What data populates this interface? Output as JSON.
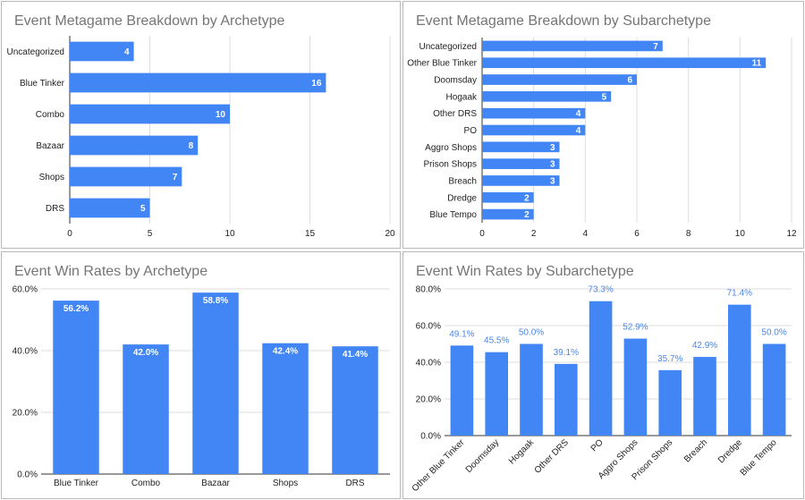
{
  "colors": {
    "bar": "#4285f4",
    "grid": "#dddddd",
    "axis": "#333333",
    "title": "#757575"
  },
  "chart_data": [
    {
      "type": "bar",
      "orientation": "horizontal",
      "title": "Event Metagame Breakdown by Archetype",
      "categories": [
        "Uncategorized",
        "Blue Tinker",
        "Combo",
        "Bazaar",
        "Shops",
        "DRS"
      ],
      "values": [
        4,
        16,
        10,
        8,
        7,
        5
      ],
      "value_labels": [
        "4",
        "16",
        "10",
        "8",
        "7",
        "5"
      ],
      "xlim": [
        0,
        20
      ],
      "ticks": [
        0,
        5,
        10,
        15,
        20
      ],
      "tick_labels": [
        "0",
        "5",
        "10",
        "15",
        "20"
      ],
      "grid": true
    },
    {
      "type": "bar",
      "orientation": "horizontal",
      "title": "Event Metagame Breakdown by Subarchetype",
      "categories": [
        "Uncategorized",
        "Other Blue Tinker",
        "Doomsday",
        "Hogaak",
        "Other DRS",
        "PO",
        "Aggro Shops",
        "Prison Shops",
        "Breach",
        "Dredge",
        "Blue Tempo"
      ],
      "values": [
        7,
        11,
        6,
        5,
        4,
        4,
        3,
        3,
        3,
        2,
        2
      ],
      "value_labels": [
        "7",
        "11",
        "6",
        "5",
        "4",
        "4",
        "3",
        "3",
        "3",
        "2",
        "2"
      ],
      "xlim": [
        0,
        12
      ],
      "ticks": [
        0,
        2,
        4,
        6,
        8,
        10,
        12
      ],
      "tick_labels": [
        "0",
        "2",
        "4",
        "6",
        "8",
        "10",
        "12"
      ],
      "grid": true
    },
    {
      "type": "bar",
      "orientation": "vertical",
      "title": "Event Win Rates by Archetype",
      "categories": [
        "Blue Tinker",
        "Combo",
        "Bazaar",
        "Shops",
        "DRS"
      ],
      "values": [
        56.2,
        42.0,
        58.8,
        42.4,
        41.4
      ],
      "value_labels": [
        "56.2%",
        "42.0%",
        "58.8%",
        "42.4%",
        "41.4%"
      ],
      "ylim": [
        0,
        60
      ],
      "ticks": [
        0,
        20,
        40,
        60
      ],
      "tick_labels": [
        "0.0%",
        "20.0%",
        "40.0%",
        "60.0%"
      ],
      "grid": true
    },
    {
      "type": "bar",
      "orientation": "vertical",
      "title": "Event Win Rates by Subarchetype",
      "categories": [
        "Other Blue Tinker",
        "Doomsday",
        "Hogaak",
        "Other DRS",
        "PO",
        "Aggro Shops",
        "Prison Shops",
        "Breach",
        "Dredge",
        "Blue Tempo"
      ],
      "values": [
        49.1,
        45.5,
        50.0,
        39.1,
        73.3,
        52.9,
        35.7,
        42.9,
        71.4,
        50.0
      ],
      "value_labels": [
        "49.1%",
        "45.5%",
        "50.0%",
        "39.1%",
        "73.3%",
        "52.9%",
        "35.7%",
        "42.9%",
        "71.4%",
        "50.0%"
      ],
      "ylim": [
        0,
        80
      ],
      "ticks": [
        0,
        20,
        40,
        60,
        80
      ],
      "tick_labels": [
        "0.0%",
        "20.0%",
        "40.0%",
        "60.0%",
        "80.0%"
      ],
      "grid": true
    }
  ]
}
